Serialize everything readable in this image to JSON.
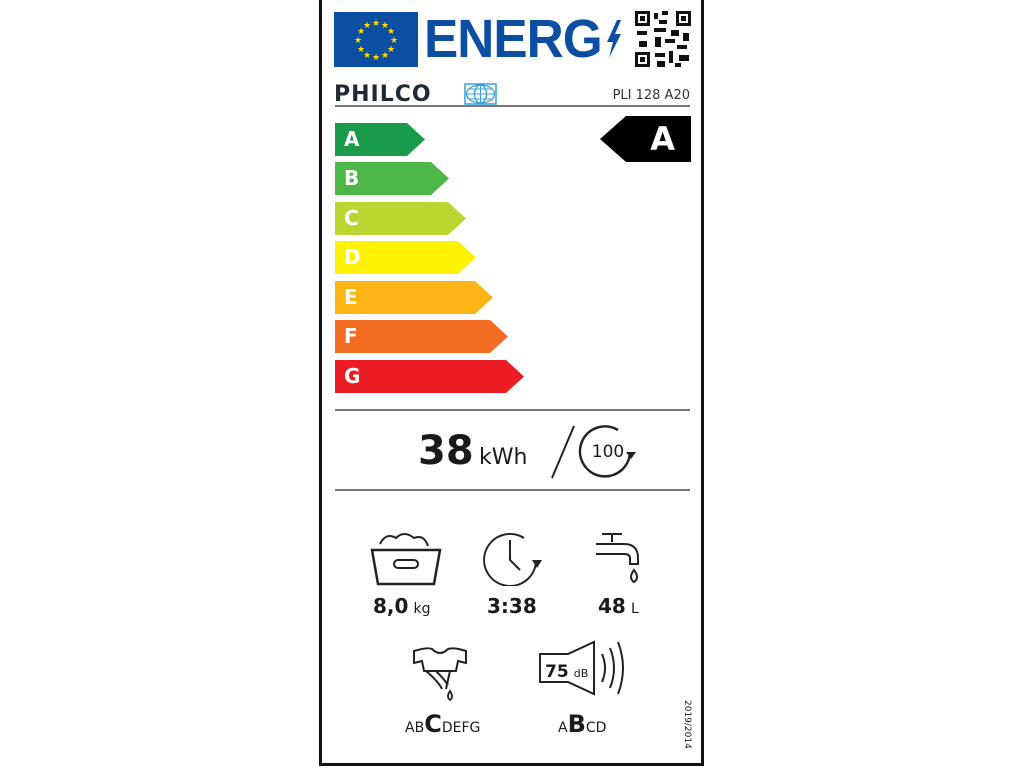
{
  "header": {
    "title": "ENERG",
    "brand": "PHILCO",
    "model": "PLI 128 A20",
    "icons": [
      "eu-flag-icon",
      "lightning-icon",
      "qr-code-icon",
      "philco-globe-icon"
    ]
  },
  "scale": {
    "classes": [
      {
        "label": "A",
        "color": "#1a9b4b"
      },
      {
        "label": "B",
        "color": "#4db848"
      },
      {
        "label": "C",
        "color": "#bcd631"
      },
      {
        "label": "D",
        "color": "#fff200"
      },
      {
        "label": "E",
        "color": "#fcb514"
      },
      {
        "label": "F",
        "color": "#f26c22"
      },
      {
        "label": "G",
        "color": "#ec1c24"
      }
    ],
    "rating": "A"
  },
  "energy": {
    "value": "38",
    "unit": "kWh",
    "cycles": "100"
  },
  "specs": {
    "capacity": {
      "value": "8,0",
      "unit": "kg"
    },
    "duration": {
      "value": "3:38"
    },
    "water": {
      "value": "48",
      "unit": "L"
    },
    "spin": {
      "pre": "AB",
      "sel": "C",
      "post": "DEFG"
    },
    "noise": {
      "value": "75",
      "unit": "dB",
      "pre": "A",
      "sel": "B",
      "post": "CD"
    }
  },
  "regulation": "2019/2014"
}
